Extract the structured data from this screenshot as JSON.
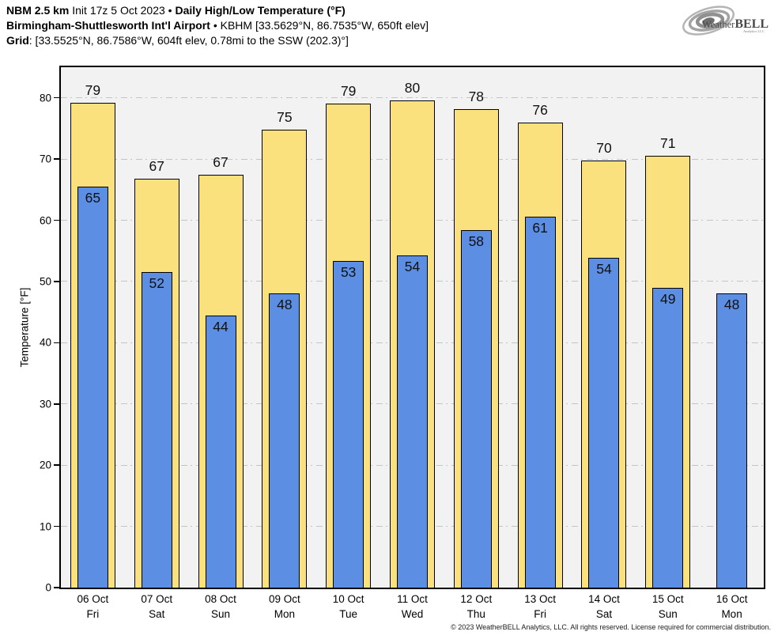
{
  "header": {
    "model": "NBM 2.5 km",
    "init": "Init 17z 5 Oct 2023",
    "sep": "•",
    "product": "Daily High/Low Temperature (°F)",
    "station": "Birmingham-Shuttlesworth Int'l Airport",
    "station_meta": "KBHM [33.5629°N, 86.7535°W, 650ft elev]",
    "grid_label": "Grid",
    "grid_meta": ": [33.5525°N, 86.7586°W, 604ft elev, 0.78mi to the SSW (202.3)°]"
  },
  "logo": {
    "weather": "Weather",
    "bell": "BELL",
    "sub": "Analytics LLC"
  },
  "footer": {
    "copyright": "© 2023 WeatherBELL Analytics, LLC. All rights reserved. License required for commercial distribution."
  },
  "chart_data": {
    "type": "bar",
    "title": "Daily High/Low Temperature (°F)",
    "ylabel": "Temperature [°F]",
    "ylim": [
      0,
      85
    ],
    "yticks": [
      0,
      10,
      20,
      30,
      40,
      50,
      60,
      70,
      80
    ],
    "grid": "horizontal dash-dot",
    "plot_bg": "#f2f2f2",
    "gridline_color": "#c4c4c4",
    "categories": [
      {
        "date": "06 Oct",
        "day": "Fri"
      },
      {
        "date": "07 Oct",
        "day": "Sat"
      },
      {
        "date": "08 Oct",
        "day": "Sun"
      },
      {
        "date": "09 Oct",
        "day": "Mon"
      },
      {
        "date": "10 Oct",
        "day": "Tue"
      },
      {
        "date": "11 Oct",
        "day": "Wed"
      },
      {
        "date": "12 Oct",
        "day": "Thu"
      },
      {
        "date": "13 Oct",
        "day": "Fri"
      },
      {
        "date": "14 Oct",
        "day": "Sat"
      },
      {
        "date": "15 Oct",
        "day": "Sun"
      },
      {
        "date": "16 Oct",
        "day": "Mon"
      }
    ],
    "series": [
      {
        "name": "High",
        "color": "#FBE17E",
        "labels": [
          79,
          67,
          67,
          75,
          79,
          80,
          78,
          76,
          70,
          71,
          null
        ],
        "bar_tops": [
          79.15,
          66.8,
          67.4,
          74.8,
          79.0,
          79.6,
          78.2,
          75.9,
          69.7,
          70.5,
          null
        ]
      },
      {
        "name": "Low",
        "color": "#5C8EE4",
        "labels": [
          65,
          52,
          44,
          48,
          53,
          54,
          58,
          61,
          54,
          49,
          48
        ],
        "bar_tops": [
          65.45,
          51.6,
          44.4,
          48.1,
          53.3,
          54.2,
          58.4,
          60.6,
          53.9,
          49.0,
          48.1
        ]
      }
    ]
  }
}
